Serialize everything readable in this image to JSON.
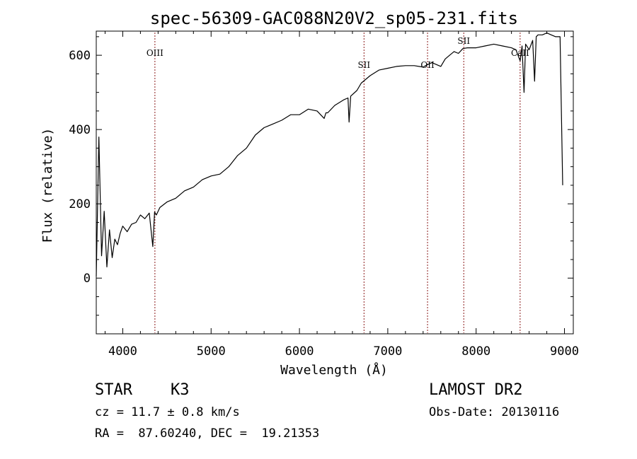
{
  "chart_data": {
    "type": "line",
    "title": "spec-56309-GAC088N20V2_sp05-231.fits",
    "xlabel": "Wavelength (Å)",
    "ylabel": "Flux (relative)",
    "xlim": [
      3700,
      9100
    ],
    "ylim": [
      -150,
      665
    ],
    "xticks": [
      4000,
      5000,
      6000,
      7000,
      8000,
      9000
    ],
    "yticks": [
      0,
      200,
      400,
      600
    ],
    "grid": false,
    "series": [
      {
        "color": "#000000",
        "x": [
          3700,
          3730,
          3760,
          3790,
          3820,
          3850,
          3880,
          3910,
          3940,
          3970,
          4000,
          4050,
          4100,
          4150,
          4200,
          4250,
          4300,
          4340,
          4360,
          4380,
          4420,
          4500,
          4600,
          4700,
          4800,
          4900,
          5000,
          5100,
          5200,
          5300,
          5400,
          5500,
          5600,
          5700,
          5800,
          5900,
          6000,
          6100,
          6200,
          6280,
          6300,
          6320,
          6400,
          6500,
          6550,
          6562,
          6580,
          6650,
          6700,
          6800,
          6900,
          7000,
          7100,
          7200,
          7300,
          7400,
          7450,
          7500,
          7600,
          7650,
          7700,
          7750,
          7800,
          7850,
          7900,
          8000,
          8100,
          8200,
          8300,
          8400,
          8450,
          8498,
          8520,
          8542,
          8560,
          8600,
          8640,
          8662,
          8680,
          8700,
          8750,
          8800,
          8850,
          8900,
          8950,
          8980
        ],
        "y": [
          5,
          380,
          60,
          180,
          30,
          130,
          55,
          105,
          90,
          120,
          140,
          125,
          145,
          150,
          170,
          160,
          175,
          85,
          178,
          170,
          190,
          205,
          215,
          235,
          245,
          265,
          275,
          280,
          300,
          330,
          350,
          385,
          405,
          415,
          425,
          440,
          440,
          455,
          450,
          430,
          445,
          445,
          465,
          480,
          485,
          420,
          490,
          505,
          525,
          545,
          560,
          565,
          570,
          572,
          572,
          568,
          575,
          580,
          570,
          590,
          600,
          610,
          605,
          618,
          620,
          620,
          625,
          630,
          625,
          620,
          615,
          585,
          625,
          500,
          630,
          615,
          640,
          530,
          650,
          655,
          655,
          660,
          655,
          650,
          650,
          250
        ]
      }
    ],
    "lines": [
      {
        "label": "OIII",
        "x": 4364
      },
      {
        "label": "SII",
        "x": 6731
      },
      {
        "label": "OII",
        "x": 7450
      },
      {
        "label": "SII",
        "x": 7860
      },
      {
        "label": "CaII",
        "x": 8498
      }
    ],
    "line_color": "#8b1a1a"
  },
  "info": {
    "object_class": "STAR",
    "subclass": "K3",
    "survey": "LAMOST DR2",
    "redshift_line": "cz = 11.7 ± 0.8 km/s",
    "obs_date_line": "Obs-Date: 20130116",
    "coords_line": "RA =  87.60240, DEC =  19.21353"
  }
}
